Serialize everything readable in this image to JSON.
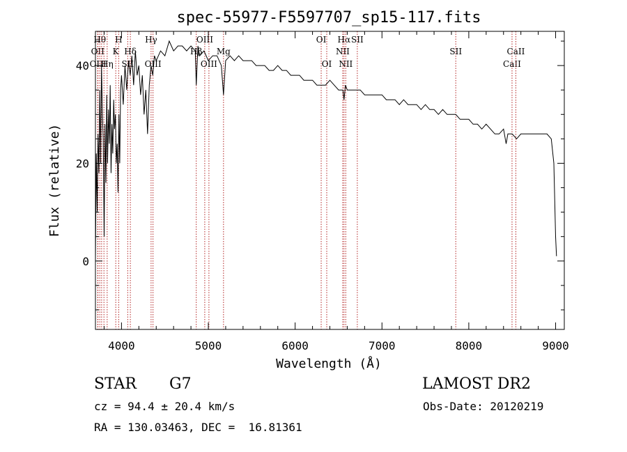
{
  "chart_data": {
    "type": "line",
    "title": "spec-55977-F5597707_sp15-117.fits",
    "xlabel": "Wavelength (Å)",
    "ylabel": "Flux (relative)",
    "xlim": [
      3700,
      9100
    ],
    "ylim": [
      -14,
      47
    ],
    "xticks": [
      4000,
      5000,
      6000,
      7000,
      8000,
      9000
    ],
    "yticks": [
      0,
      20,
      40
    ],
    "line_color": "#000000",
    "marker_color": "#b22222",
    "series": [
      {
        "x": [
          3700,
          3710,
          3720,
          3730,
          3740,
          3750,
          3760,
          3770,
          3780,
          3790,
          3800,
          3810,
          3820,
          3830,
          3840,
          3850,
          3860,
          3870,
          3880,
          3890,
          3900,
          3910,
          3920,
          3930,
          3940,
          3950,
          3960,
          3970,
          3980,
          3990,
          4000,
          4020,
          4040,
          4060,
          4080,
          4100,
          4120,
          4140,
          4160,
          4180,
          4200,
          4220,
          4240,
          4260,
          4280,
          4300,
          4320,
          4340,
          4360,
          4380,
          4400,
          4450,
          4500,
          4550,
          4600,
          4650,
          4700,
          4750,
          4800,
          4850,
          4861,
          4880,
          4900,
          4950,
          5000,
          5050,
          5100,
          5150,
          5175,
          5200,
          5250,
          5300,
          5350,
          5400,
          5450,
          5500,
          5550,
          5600,
          5650,
          5700,
          5750,
          5800,
          5850,
          5900,
          5950,
          6000,
          6050,
          6100,
          6150,
          6200,
          6250,
          6300,
          6350,
          6400,
          6450,
          6500,
          6550,
          6563,
          6580,
          6600,
          6650,
          6700,
          6750,
          6800,
          6850,
          6900,
          6950,
          7000,
          7050,
          7100,
          7150,
          7200,
          7250,
          7300,
          7350,
          7400,
          7450,
          7500,
          7550,
          7600,
          7650,
          7700,
          7750,
          7800,
          7850,
          7900,
          7950,
          8000,
          8050,
          8100,
          8150,
          8200,
          8250,
          8300,
          8350,
          8400,
          8430,
          8450,
          8500,
          8550,
          8600,
          8650,
          8700,
          8750,
          8800,
          8850,
          8900,
          8950,
          8980,
          9000,
          9010
        ],
        "y": [
          0,
          22,
          10,
          26,
          18,
          35,
          20,
          40,
          30,
          25,
          5,
          28,
          16,
          34,
          20,
          31,
          24,
          36,
          18,
          28,
          22,
          33,
          27,
          30,
          20,
          24,
          14,
          30,
          20,
          35,
          38,
          32,
          40,
          35,
          41,
          38,
          42,
          36,
          43,
          38,
          40,
          34,
          38,
          30,
          35,
          26,
          36,
          40,
          38,
          42,
          41,
          43,
          42,
          45,
          43,
          44,
          44,
          43,
          44,
          43,
          36,
          44,
          42,
          43,
          41,
          42,
          42,
          40,
          34,
          41,
          42,
          41,
          42,
          41,
          41,
          41,
          40,
          40,
          40,
          39,
          39,
          40,
          39,
          39,
          38,
          38,
          38,
          37,
          37,
          37,
          36,
          36,
          36,
          37,
          36,
          35,
          35,
          33,
          36,
          35,
          35,
          35,
          35,
          34,
          34,
          34,
          34,
          34,
          33,
          33,
          33,
          32,
          33,
          32,
          32,
          32,
          31,
          32,
          31,
          31,
          30,
          31,
          30,
          30,
          30,
          29,
          29,
          29,
          28,
          28,
          27,
          28,
          27,
          26,
          26,
          27,
          24,
          26,
          26,
          25,
          26,
          26,
          26,
          26,
          26,
          26,
          26,
          25,
          20,
          5,
          1
        ]
      }
    ],
    "line_markers": [
      {
        "x": 3726,
        "label": "OII",
        "row": 2
      },
      {
        "x": 3729,
        "label": "OIII",
        "row": 3
      },
      {
        "x": 3750,
        "label": "Hθ",
        "row": 1
      },
      {
        "x": 3771,
        "label": "",
        "row": 0
      },
      {
        "x": 3798,
        "label": "",
        "row": 0
      },
      {
        "x": 3835,
        "label": "Hη",
        "row": 3
      },
      {
        "x": 3934,
        "label": "K",
        "row": 2
      },
      {
        "x": 3968,
        "label": "H",
        "row": 1
      },
      {
        "x": 4072,
        "label": "SII",
        "row": 3
      },
      {
        "x": 4102,
        "label": "Hδ",
        "row": 2
      },
      {
        "x": 4341,
        "label": "Hγ",
        "row": 1
      },
      {
        "x": 4363,
        "label": "OIII",
        "row": 3
      },
      {
        "x": 4861,
        "label": "Hβ",
        "row": 2
      },
      {
        "x": 4959,
        "label": "OIII",
        "row": 1
      },
      {
        "x": 5007,
        "label": "OIII",
        "row": 3
      },
      {
        "x": 5175,
        "label": "Mg",
        "row": 2
      },
      {
        "x": 6300,
        "label": "OI",
        "row": 1
      },
      {
        "x": 6364,
        "label": "OI",
        "row": 3
      },
      {
        "x": 6548,
        "label": "NII",
        "row": 2
      },
      {
        "x": 6563,
        "label": "Hα",
        "row": 1
      },
      {
        "x": 6583,
        "label": "NII",
        "row": 3
      },
      {
        "x": 6716,
        "label": "SII",
        "row": 1
      },
      {
        "x": 7850,
        "label": "SII",
        "row": 2
      },
      {
        "x": 8498,
        "label": "CaII",
        "row": 3
      },
      {
        "x": 8542,
        "label": "CaII",
        "row": 2
      }
    ]
  },
  "info": {
    "object_class": "STAR",
    "subclass": "G7",
    "survey": "LAMOST DR2",
    "cz": "cz = 94.4 ± 20.4 km/s",
    "obs_date": "Obs-Date: 20120219",
    "coords": "RA = 130.03463, DEC =  16.81361"
  }
}
